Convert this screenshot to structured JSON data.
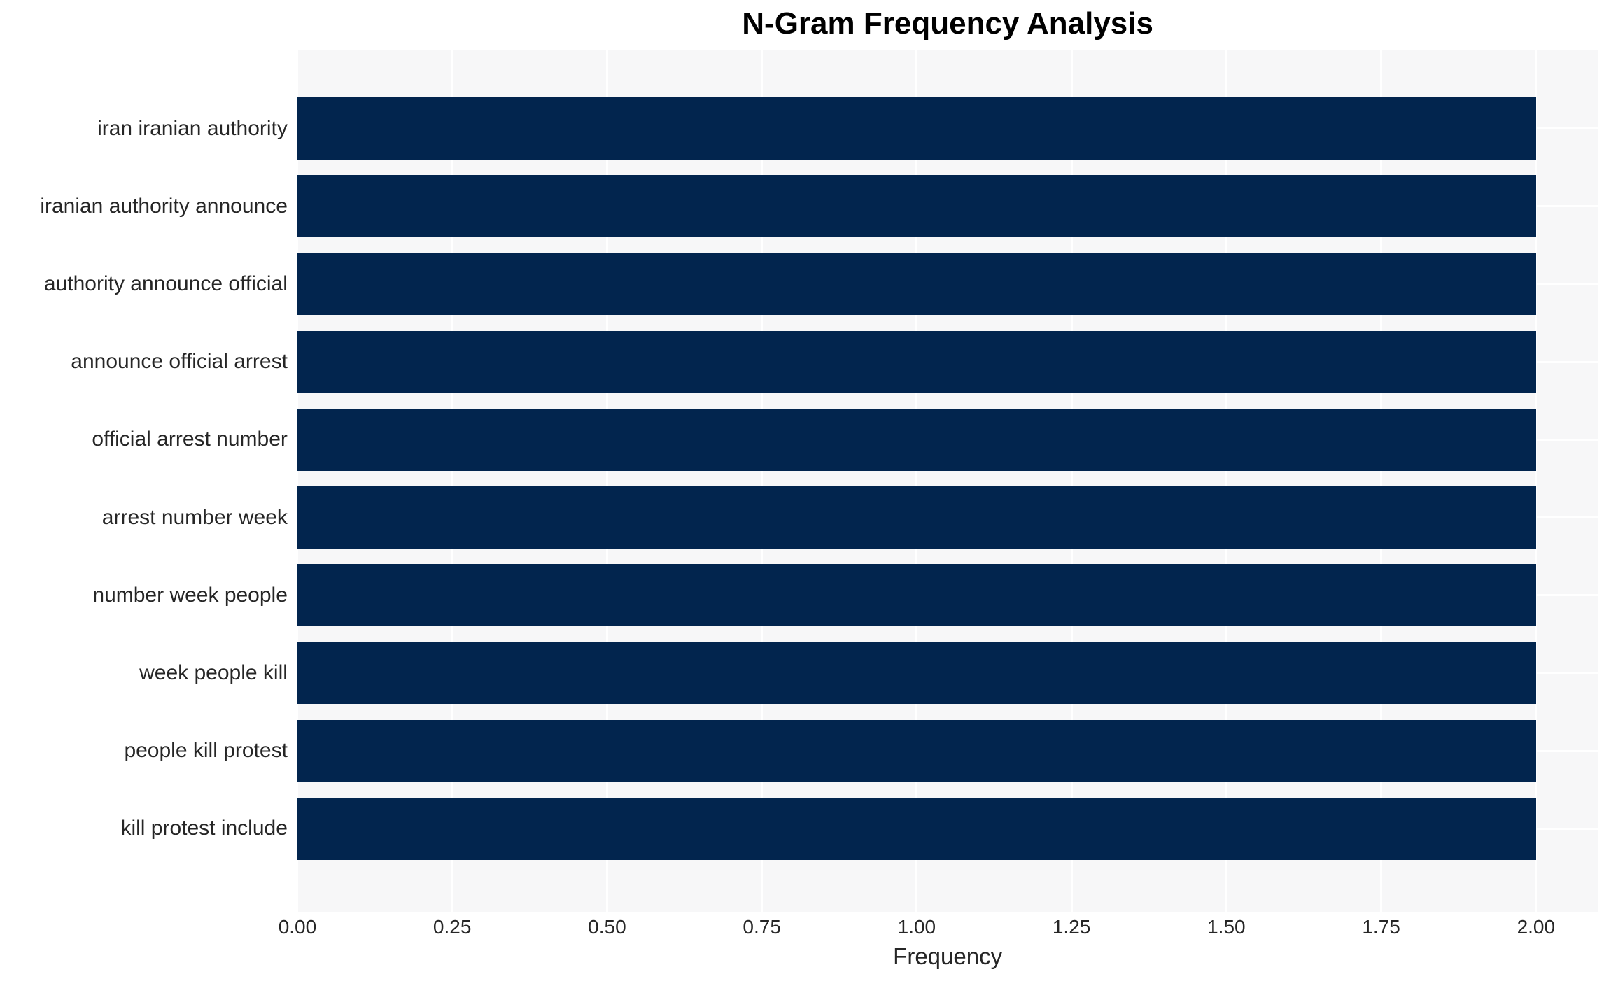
{
  "chart_data": {
    "type": "bar",
    "orientation": "horizontal",
    "title": "N-Gram Frequency Analysis",
    "xlabel": "Frequency",
    "ylabel": "",
    "categories": [
      "iran iranian authority",
      "iranian authority announce",
      "authority announce official",
      "announce official arrest",
      "official arrest number",
      "arrest number week",
      "number week people",
      "week people kill",
      "people kill protest",
      "kill protest include"
    ],
    "values": [
      2,
      2,
      2,
      2,
      2,
      2,
      2,
      2,
      2,
      2
    ],
    "xlim": [
      0,
      2.1
    ],
    "xticks": [
      0,
      0.25,
      0.5,
      0.75,
      1,
      1.25,
      1.5,
      1.75,
      2
    ],
    "tick_decimals": 2,
    "grid": true,
    "legend": null,
    "colors": {
      "bar": "#02254E",
      "plot_background": "#F7F7F8",
      "gridline": "#FFFFFF",
      "tick_text": "#262626",
      "title_text": "#000000"
    }
  }
}
